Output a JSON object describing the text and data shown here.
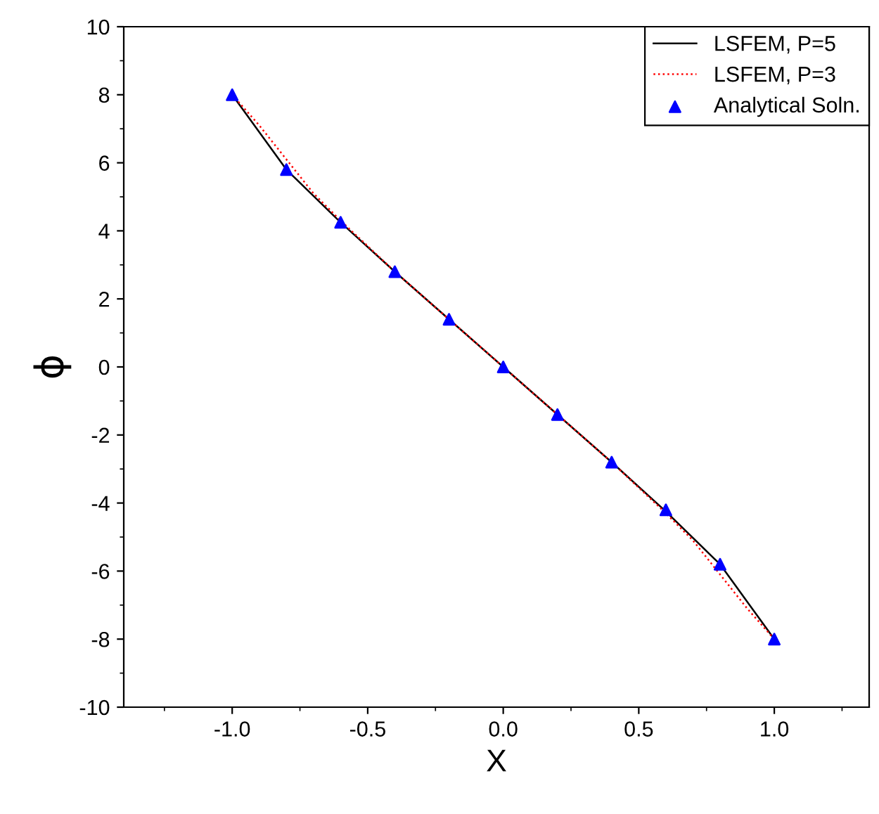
{
  "chart_data": {
    "type": "line",
    "xlabel": "X",
    "ylabel": "ϕ",
    "xlim": [
      -1.4,
      1.35
    ],
    "ylim": [
      -10,
      10
    ],
    "xticks": [
      {
        "value": -1.0,
        "label": "-1.0"
      },
      {
        "value": -0.5,
        "label": "-0.5"
      },
      {
        "value": 0.0,
        "label": "0.0"
      },
      {
        "value": 0.5,
        "label": "0.5"
      },
      {
        "value": 1.0,
        "label": "1.0"
      }
    ],
    "yticks": [
      {
        "value": -10,
        "label": "-10"
      },
      {
        "value": -8,
        "label": "-8"
      },
      {
        "value": -6,
        "label": "-6"
      },
      {
        "value": -4,
        "label": "-4"
      },
      {
        "value": -2,
        "label": "-2"
      },
      0,
      2,
      4,
      6,
      8,
      10
    ],
    "grid": false,
    "legend": "top right",
    "series": [
      {
        "name": "LSFEM, P=5",
        "color": "#000000",
        "line_style": "solid",
        "marker": "none",
        "x": [
          -1,
          -0.8,
          -0.6,
          -0.4,
          -0.2,
          0,
          0.2,
          0.4,
          0.6,
          0.8,
          1
        ],
        "values": [
          8,
          5.8,
          4.25,
          2.8,
          1.4,
          0,
          -1.4,
          -2.8,
          -4.25,
          -5.8,
          -8
        ]
      },
      {
        "name": "LSFEM, P=3",
        "color": "#ff0000",
        "line_style": "dotted",
        "marker": "none",
        "x": [
          -1,
          -0.9,
          -0.8,
          -0.7,
          -0.6,
          -0.4,
          -0.2,
          0,
          0.2,
          0.4,
          0.6,
          0.7,
          0.8,
          0.9,
          1
        ],
        "values": [
          8,
          7.1,
          6.1,
          5.1,
          4.3,
          2.8,
          1.4,
          0,
          -1.4,
          -2.8,
          -4.3,
          -5.1,
          -6.1,
          -7.1,
          -8
        ]
      },
      {
        "name": "Analytical Soln.",
        "type": "scatter",
        "color": "#0000ff",
        "marker": "triangle",
        "x": [
          -1,
          -0.8,
          -0.6,
          -0.4,
          -0.2,
          0,
          0.2,
          0.4,
          0.6,
          0.8,
          1
        ],
        "values": [
          8,
          5.8,
          4.25,
          2.8,
          1.4,
          0,
          -1.4,
          -2.8,
          -4.2,
          -5.8,
          -8
        ]
      }
    ]
  }
}
